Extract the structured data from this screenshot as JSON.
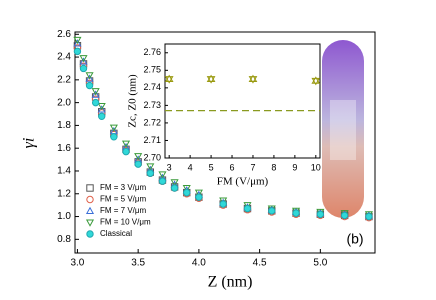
{
  "chart_data": [
    {
      "type": "scatter",
      "xlabel": "Z (nm)",
      "ylabel": "γi",
      "annotation": "(b)",
      "xlim": [
        2.98,
        5.45
      ],
      "ylim": [
        0.68,
        2.62
      ],
      "xticks": [
        {
          "value": 3,
          "label": "3.0"
        },
        3.5,
        {
          "value": 4,
          "label": "4.0"
        },
        4.5,
        {
          "value": 5,
          "label": "5.0"
        }
      ],
      "yticks": [
        0.8,
        {
          "value": 1,
          "label": "1.0"
        },
        1.2,
        1.4,
        1.6,
        1.8,
        {
          "value": 2,
          "label": "2.0"
        },
        2.2,
        2.4,
        2.6
      ],
      "x": [
        3.0,
        3.05,
        3.1,
        3.15,
        3.2,
        3.3,
        3.4,
        3.5,
        3.6,
        3.7,
        3.8,
        3.9,
        4.0,
        4.2,
        4.4,
        4.6,
        4.8,
        5.0,
        5.2,
        5.4
      ],
      "series": [
        {
          "name": "FM = 3 V/μm",
          "marker": "square",
          "color": "#555555",
          "values": [
            2.5,
            2.34,
            2.19,
            2.05,
            1.92,
            1.73,
            1.59,
            1.48,
            1.39,
            1.32,
            1.26,
            1.21,
            1.17,
            1.11,
            1.07,
            1.05,
            1.03,
            1.02,
            1.01,
            1.0
          ]
        },
        {
          "name": "FM = 5 V/μm",
          "marker": "circle",
          "color": "#e0604a",
          "values": [
            2.48,
            2.32,
            2.17,
            2.03,
            1.91,
            1.72,
            1.58,
            1.47,
            1.38,
            1.31,
            1.25,
            1.2,
            1.16,
            1.1,
            1.06,
            1.04,
            1.02,
            1.01,
            1.0,
            0.99
          ]
        },
        {
          "name": "FM = 7 V/μm",
          "marker": "triangle-up",
          "color": "#3a6fd8",
          "values": [
            2.52,
            2.36,
            2.21,
            2.07,
            1.94,
            1.75,
            1.61,
            1.5,
            1.41,
            1.34,
            1.28,
            1.23,
            1.19,
            1.12,
            1.08,
            1.06,
            1.04,
            1.03,
            1.02,
            1.01
          ]
        },
        {
          "name": "FM = 10 V/μm",
          "marker": "triangle-down",
          "color": "#3a9a3a",
          "values": [
            2.55,
            2.39,
            2.24,
            2.1,
            1.97,
            1.78,
            1.64,
            1.53,
            1.44,
            1.37,
            1.3,
            1.25,
            1.21,
            1.14,
            1.1,
            1.07,
            1.05,
            1.04,
            1.03,
            1.02
          ]
        },
        {
          "name": "Classical",
          "marker": "filled-circle",
          "color": "#30d8d8",
          "values": [
            2.45,
            2.3,
            2.15,
            2.0,
            1.88,
            1.7,
            1.57,
            1.46,
            1.38,
            1.31,
            1.25,
            1.21,
            1.17,
            1.11,
            1.07,
            1.05,
            1.03,
            1.02,
            1.01,
            1.0
          ]
        }
      ]
    },
    {
      "type": "scatter",
      "xlabel": "FM (V/μm)",
      "ylabel": "Zc, Z0 (nm)",
      "xlim": [
        2.8,
        10.2
      ],
      "ylim": [
        2.7,
        2.765
      ],
      "xticks": [
        3,
        4,
        5,
        6,
        7,
        8,
        9,
        10
      ],
      "yticks": [
        {
          "value": 2.7,
          "label": "2.70"
        },
        2.71,
        2.72,
        2.73,
        2.74,
        2.75,
        2.76
      ],
      "x": [
        3,
        5,
        7,
        10
      ],
      "series": [
        {
          "marker": "triangle-star",
          "color": "#9a9a10",
          "values": [
            2.745,
            2.745,
            2.745,
            2.744
          ]
        }
      ],
      "hline": {
        "value": 2.727,
        "color": "#8a9a20"
      }
    }
  ]
}
